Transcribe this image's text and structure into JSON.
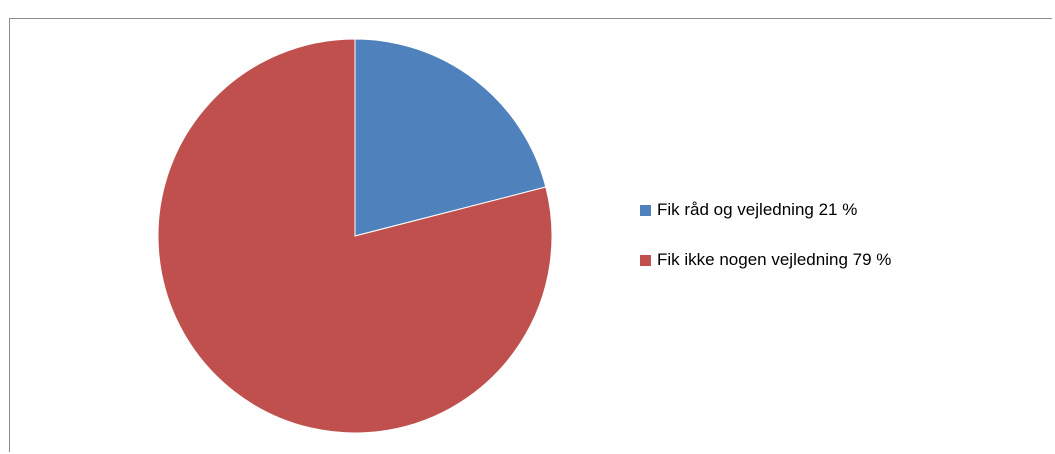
{
  "chart_data": {
    "type": "pie",
    "title": "",
    "legend_position": "right",
    "slices": [
      {
        "label": "Fik råd og vejledning 21 %",
        "value": 21,
        "color": "#4f81bd"
      },
      {
        "label": "Fik ikke nogen vejledning 79 %",
        "value": 79,
        "color": "#c0504d"
      }
    ]
  }
}
